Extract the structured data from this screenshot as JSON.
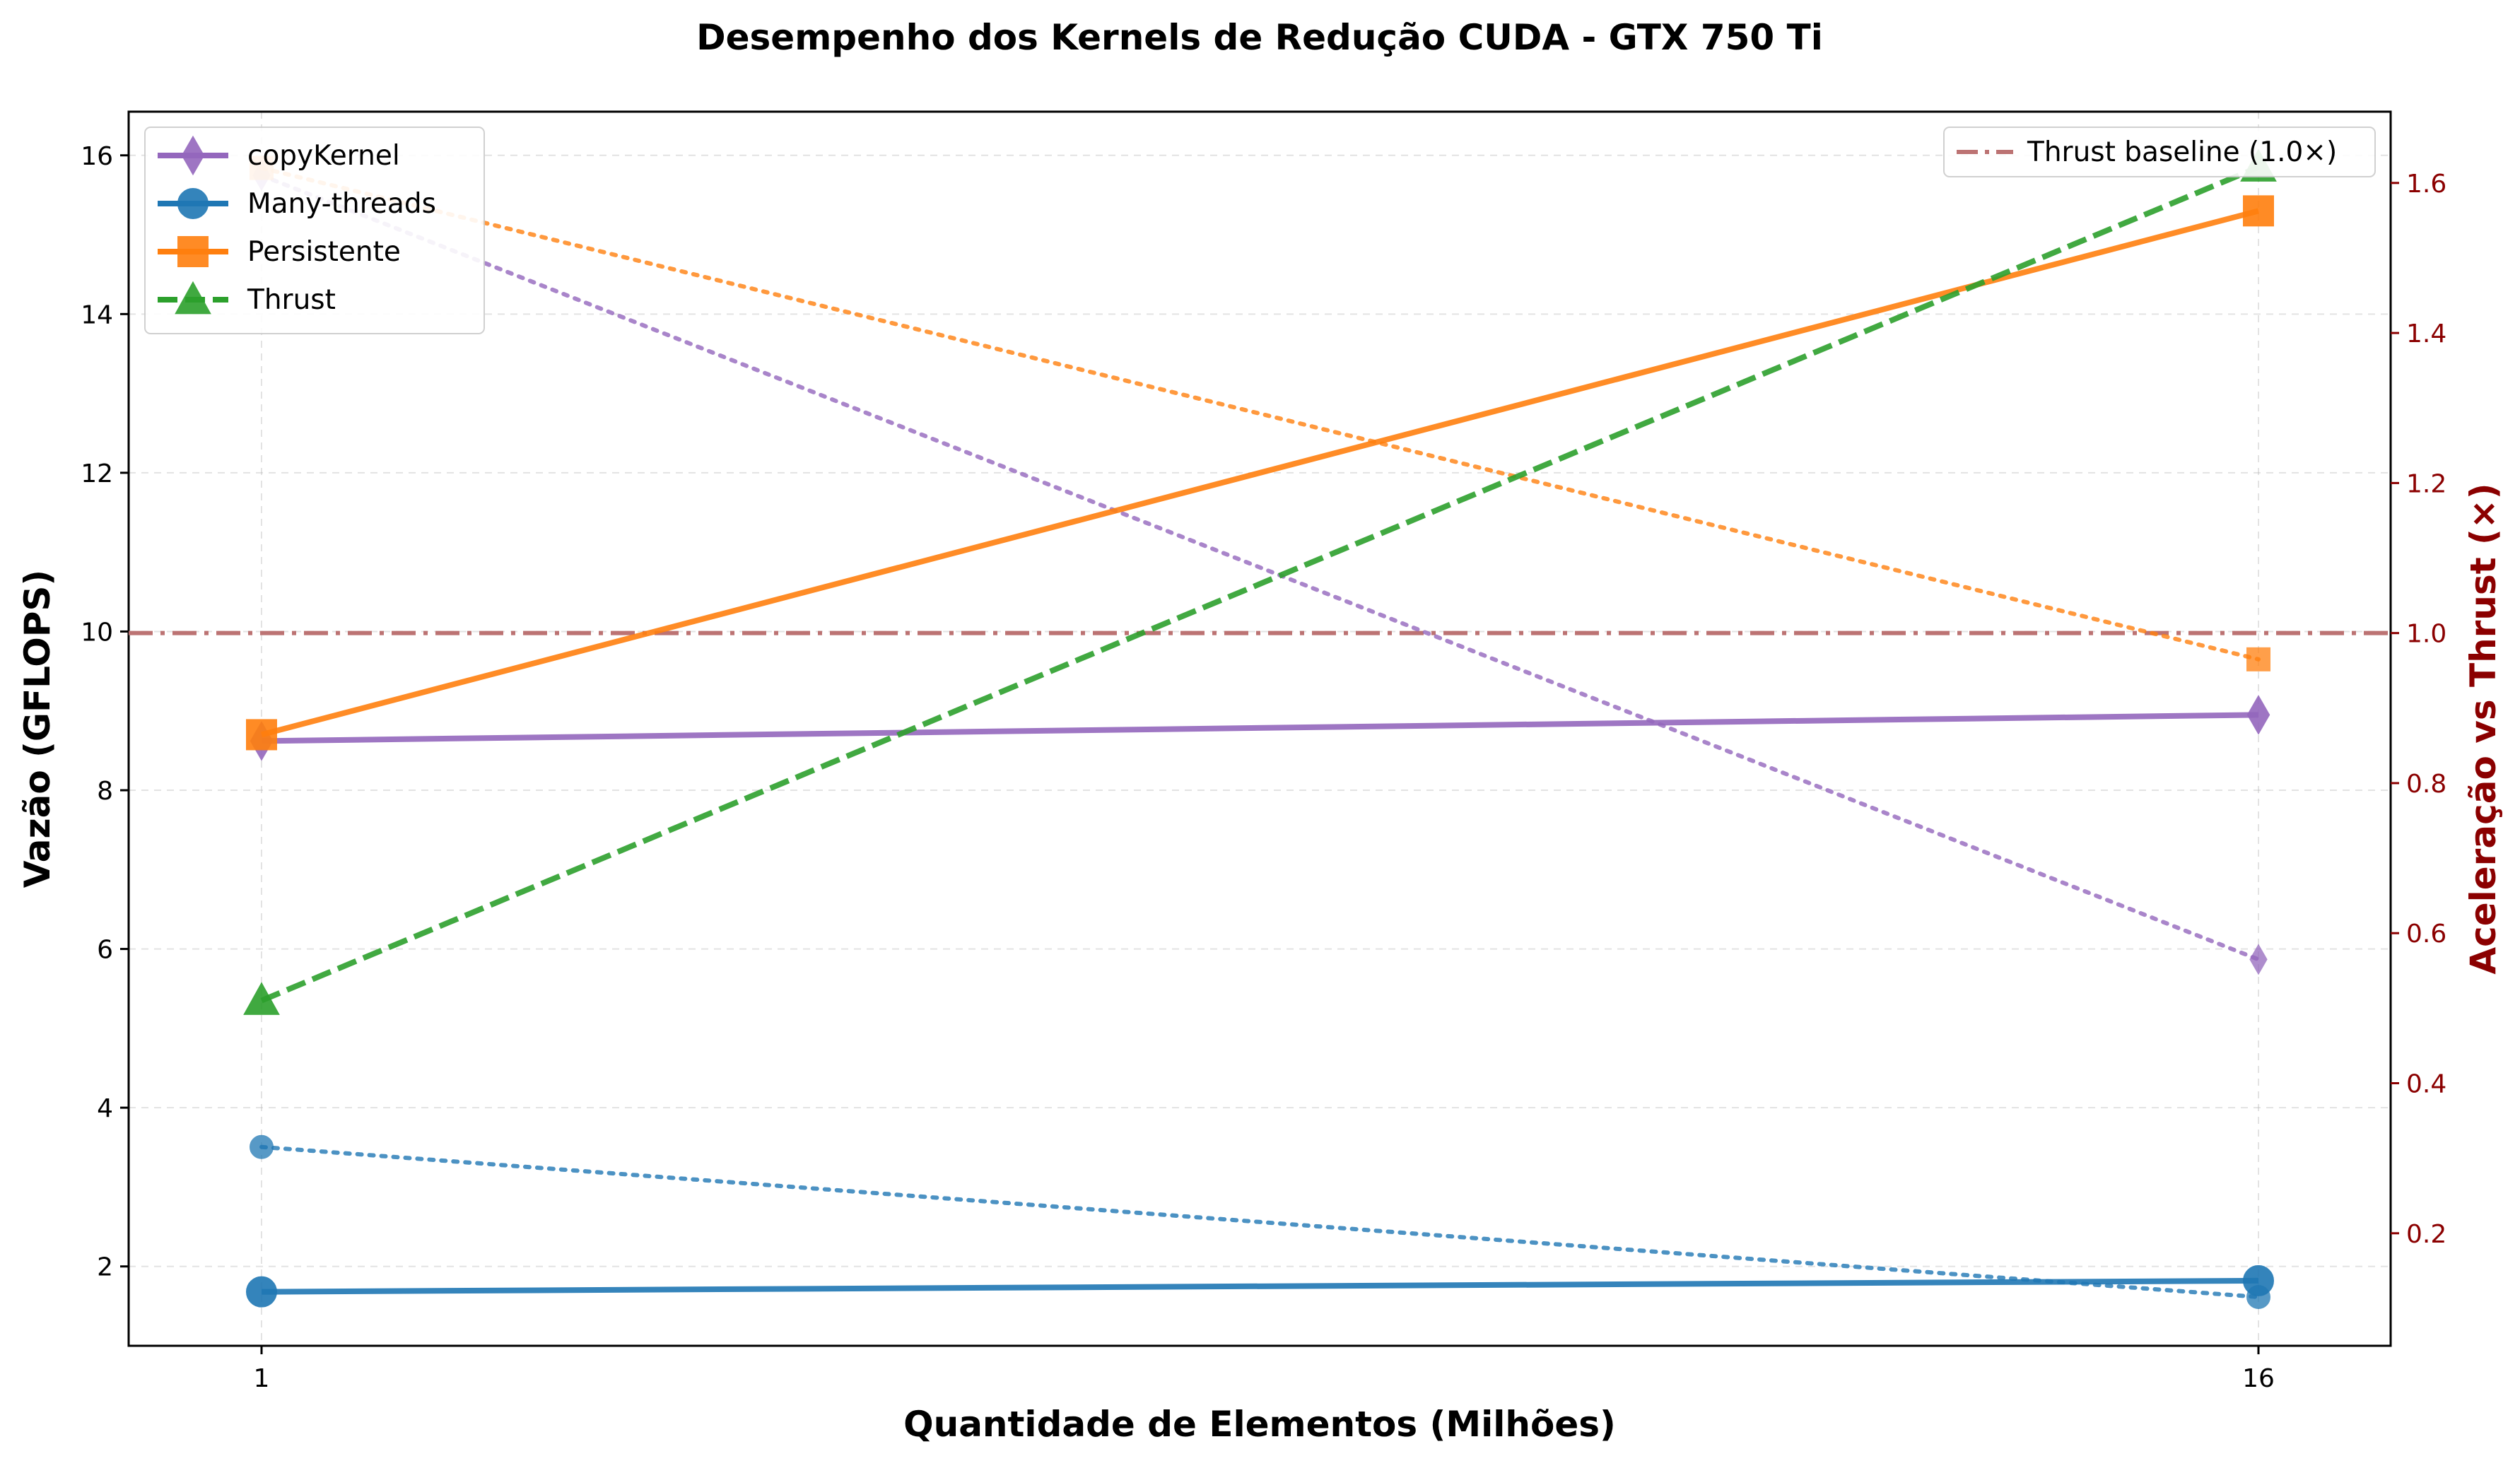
{
  "chart_data": {
    "type": "line",
    "title": "Desempenho dos Kernels de Redução CUDA - GTX 750 Ti",
    "xlabel": "Quantidade de Elementos (Milhões)",
    "ylabel": "Vazão (GFLOPS)",
    "ylabel_right": "Aceleração vs Thrust (×)",
    "x_categories": [
      "1",
      "16"
    ],
    "ylim": [
      1.0,
      16.55
    ],
    "yticks": [
      2,
      4,
      6,
      8,
      10,
      12,
      14,
      16
    ],
    "ylim_right": [
      0.05,
      1.695
    ],
    "yticks_right": [
      0.2,
      0.4,
      0.6,
      0.8,
      1.0,
      1.2,
      1.4,
      1.6
    ],
    "grid": true,
    "series": [
      {
        "name": "copyKernel",
        "color": "#9467bd",
        "marker": "diamond",
        "linestyle": "solid",
        "values": [
          8.62,
          8.95
        ]
      },
      {
        "name": "Many-threads",
        "color": "#1f77b4",
        "marker": "circle",
        "linestyle": "solid",
        "values": [
          1.68,
          1.82
        ]
      },
      {
        "name": "Persistente",
        "color": "#ff7f0e",
        "marker": "square",
        "linestyle": "solid",
        "values": [
          8.7,
          15.3
        ]
      },
      {
        "name": "Thrust",
        "color": "#2ca02c",
        "marker": "triangle",
        "linestyle": "dashed",
        "values": [
          5.35,
          15.85
        ]
      }
    ],
    "speedup_series": [
      {
        "of": "copyKernel",
        "color": "#9467bd",
        "marker": "diamond",
        "values": [
          1.61,
          0.565
        ]
      },
      {
        "of": "Many-threads",
        "color": "#1f77b4",
        "marker": "circle",
        "values": [
          0.315,
          0.115
        ]
      },
      {
        "of": "Persistente",
        "color": "#ff7f0e",
        "marker": "square",
        "values": [
          1.62,
          0.965
        ]
      }
    ],
    "baseline": {
      "name": "Thrust baseline (1.0×)",
      "value": 1.0,
      "color": "#bc7373"
    },
    "legend_left_position": "upper-left",
    "legend_right_position": "upper-right"
  }
}
